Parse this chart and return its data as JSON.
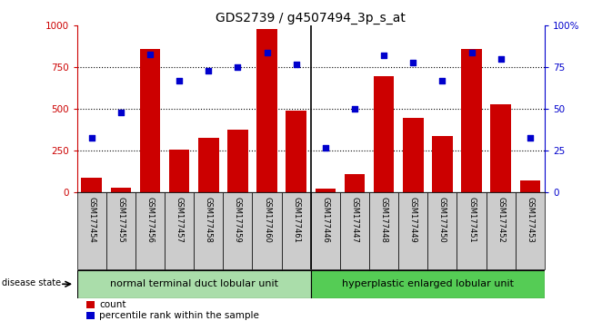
{
  "title": "GDS2739 / g4507494_3p_s_at",
  "samples": [
    "GSM177454",
    "GSM177455",
    "GSM177456",
    "GSM177457",
    "GSM177458",
    "GSM177459",
    "GSM177460",
    "GSM177461",
    "GSM177446",
    "GSM177447",
    "GSM177448",
    "GSM177449",
    "GSM177450",
    "GSM177451",
    "GSM177452",
    "GSM177453"
  ],
  "counts": [
    90,
    30,
    860,
    255,
    330,
    375,
    980,
    490,
    25,
    110,
    700,
    450,
    340,
    860,
    530,
    75
  ],
  "percentiles": [
    33,
    48,
    83,
    67,
    73,
    75,
    84,
    77,
    27,
    50,
    82,
    78,
    67,
    84,
    80,
    33
  ],
  "group1_label": "normal terminal duct lobular unit",
  "group2_label": "hyperplastic enlarged lobular unit",
  "group1_count": 8,
  "group2_count": 8,
  "bar_color": "#cc0000",
  "dot_color": "#0000cc",
  "left_axis_color": "#cc0000",
  "right_axis_color": "#0000cc",
  "ylim_left": [
    0,
    1000
  ],
  "ylim_right": [
    0,
    100
  ],
  "yticks_left": [
    0,
    250,
    500,
    750,
    1000
  ],
  "yticks_right": [
    0,
    25,
    50,
    75,
    100
  ],
  "ytick_labels_left": [
    "0",
    "250",
    "500",
    "750",
    "1000"
  ],
  "ytick_labels_right": [
    "0",
    "25",
    "50",
    "75",
    "100%"
  ],
  "disease_state_label": "disease state",
  "legend_count_label": "count",
  "legend_percentile_label": "percentile rank within the sample",
  "group1_color": "#aaddaa",
  "group2_color": "#55cc55",
  "xticklabel_bg": "#cccccc",
  "background_color": "#ffffff",
  "grid_color": "#000000",
  "title_fontsize": 10,
  "tick_fontsize": 7.5,
  "sample_fontsize": 6,
  "legend_fontsize": 7.5,
  "group_fontsize": 8
}
